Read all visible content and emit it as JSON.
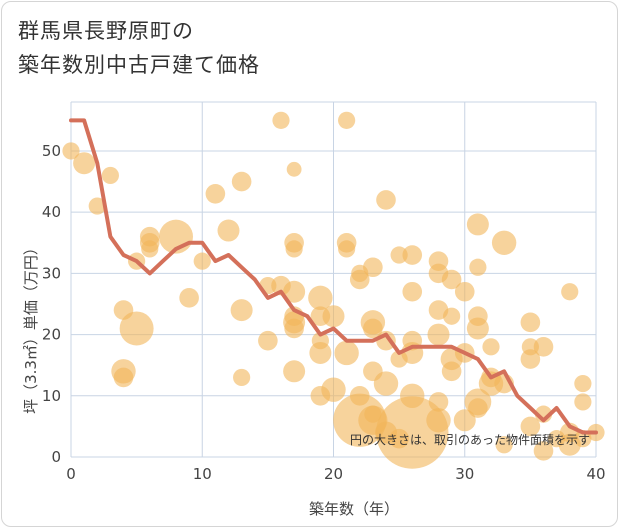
{
  "title": {
    "line1": "群馬県長野原町の",
    "line2": "築年数別中古戸建て価格"
  },
  "chart_data": {
    "type": "scatter",
    "title": "群馬県長野原町の築年数別中古戸建て価格",
    "xlabel": "築年数（年）",
    "ylabel": "坪（3.3㎡）単価（万円）",
    "xlim": [
      0,
      40
    ],
    "ylim": [
      0,
      58
    ],
    "x_ticks": [
      "0",
      "10",
      "20",
      "30",
      "40"
    ],
    "y_ticks": [
      "0",
      "10",
      "20",
      "30",
      "40",
      "50"
    ],
    "grid": true,
    "note": "円の大きさは、取引のあった物件面積を示す",
    "colors": {
      "bubble": "#f2b65a",
      "line": "#d4705a",
      "grid": "#c8d4e4"
    },
    "bubbles": [
      {
        "x": 0,
        "y": 50,
        "s": 1.5
      },
      {
        "x": 1,
        "y": 48,
        "s": 2.5
      },
      {
        "x": 2,
        "y": 41,
        "s": 1.5
      },
      {
        "x": 3,
        "y": 46,
        "s": 1.5
      },
      {
        "x": 4,
        "y": 24,
        "s": 2
      },
      {
        "x": 4,
        "y": 14,
        "s": 3
      },
      {
        "x": 4,
        "y": 13,
        "s": 2
      },
      {
        "x": 5,
        "y": 21,
        "s": 5
      },
      {
        "x": 5,
        "y": 32,
        "s": 1.5
      },
      {
        "x": 6,
        "y": 36,
        "s": 2
      },
      {
        "x": 6,
        "y": 35,
        "s": 2
      },
      {
        "x": 6,
        "y": 34,
        "s": 1.5
      },
      {
        "x": 8,
        "y": 36,
        "s": 5
      },
      {
        "x": 9,
        "y": 26,
        "s": 2
      },
      {
        "x": 10,
        "y": 32,
        "s": 1.5
      },
      {
        "x": 11,
        "y": 43,
        "s": 2
      },
      {
        "x": 12,
        "y": 37,
        "s": 2.5
      },
      {
        "x": 13,
        "y": 45,
        "s": 2
      },
      {
        "x": 13,
        "y": 24,
        "s": 2.5
      },
      {
        "x": 13,
        "y": 13,
        "s": 1.5
      },
      {
        "x": 15,
        "y": 19,
        "s": 2
      },
      {
        "x": 15,
        "y": 28,
        "s": 1.5
      },
      {
        "x": 16,
        "y": 55,
        "s": 1.5
      },
      {
        "x": 16,
        "y": 28,
        "s": 2
      },
      {
        "x": 17,
        "y": 47,
        "s": 1
      },
      {
        "x": 17,
        "y": 35,
        "s": 2
      },
      {
        "x": 17,
        "y": 34,
        "s": 1.5
      },
      {
        "x": 17,
        "y": 27,
        "s": 2.5
      },
      {
        "x": 17,
        "y": 23,
        "s": 2
      },
      {
        "x": 17,
        "y": 22,
        "s": 2.5
      },
      {
        "x": 17,
        "y": 21,
        "s": 2
      },
      {
        "x": 17,
        "y": 14,
        "s": 2.5
      },
      {
        "x": 19,
        "y": 26,
        "s": 3
      },
      {
        "x": 19,
        "y": 23,
        "s": 2
      },
      {
        "x": 19,
        "y": 19,
        "s": 1.5
      },
      {
        "x": 19,
        "y": 17,
        "s": 2.5
      },
      {
        "x": 19,
        "y": 10,
        "s": 2
      },
      {
        "x": 20,
        "y": 23,
        "s": 2.5
      },
      {
        "x": 20,
        "y": 11,
        "s": 3
      },
      {
        "x": 21,
        "y": 55,
        "s": 1.5
      },
      {
        "x": 21,
        "y": 35,
        "s": 2
      },
      {
        "x": 21,
        "y": 34,
        "s": 1.5
      },
      {
        "x": 21,
        "y": 17,
        "s": 3
      },
      {
        "x": 22,
        "y": 30,
        "s": 1.5
      },
      {
        "x": 22,
        "y": 29,
        "s": 2
      },
      {
        "x": 22,
        "y": 10,
        "s": 2
      },
      {
        "x": 22,
        "y": 6,
        "s": 9
      },
      {
        "x": 23,
        "y": 31,
        "s": 2
      },
      {
        "x": 23,
        "y": 22,
        "s": 3
      },
      {
        "x": 23,
        "y": 21,
        "s": 2
      },
      {
        "x": 23,
        "y": 14,
        "s": 2
      },
      {
        "x": 23,
        "y": 7,
        "s": 1.5
      },
      {
        "x": 23,
        "y": 6,
        "s": 4
      },
      {
        "x": 24,
        "y": 42,
        "s": 2
      },
      {
        "x": 24,
        "y": 19,
        "s": 2
      },
      {
        "x": 24,
        "y": 12,
        "s": 3
      },
      {
        "x": 24,
        "y": 4,
        "s": 2.5
      },
      {
        "x": 25,
        "y": 33,
        "s": 1.5
      },
      {
        "x": 25,
        "y": 16,
        "s": 1.5
      },
      {
        "x": 25,
        "y": 3,
        "s": 2
      },
      {
        "x": 26,
        "y": 33,
        "s": 2
      },
      {
        "x": 26,
        "y": 27,
        "s": 2
      },
      {
        "x": 26,
        "y": 19,
        "s": 2
      },
      {
        "x": 26,
        "y": 17,
        "s": 2.5
      },
      {
        "x": 26,
        "y": 10,
        "s": 3
      },
      {
        "x": 26,
        "y": 4,
        "s": 13
      },
      {
        "x": 28,
        "y": 32,
        "s": 2
      },
      {
        "x": 28,
        "y": 30,
        "s": 2
      },
      {
        "x": 28,
        "y": 24,
        "s": 2
      },
      {
        "x": 28,
        "y": 20,
        "s": 2.5
      },
      {
        "x": 28,
        "y": 9,
        "s": 2
      },
      {
        "x": 28,
        "y": 6,
        "s": 3
      },
      {
        "x": 29,
        "y": 29,
        "s": 2
      },
      {
        "x": 29,
        "y": 23,
        "s": 1.5
      },
      {
        "x": 29,
        "y": 16,
        "s": 2.5
      },
      {
        "x": 29,
        "y": 14,
        "s": 2
      },
      {
        "x": 30,
        "y": 27,
        "s": 2
      },
      {
        "x": 30,
        "y": 17,
        "s": 2
      },
      {
        "x": 30,
        "y": 6,
        "s": 2.5
      },
      {
        "x": 31,
        "y": 38,
        "s": 2.5
      },
      {
        "x": 31,
        "y": 31,
        "s": 1.5
      },
      {
        "x": 31,
        "y": 23,
        "s": 2
      },
      {
        "x": 31,
        "y": 21,
        "s": 2.5
      },
      {
        "x": 31,
        "y": 9,
        "s": 3.5
      },
      {
        "x": 31,
        "y": 8,
        "s": 2
      },
      {
        "x": 32,
        "y": 18,
        "s": 1.5
      },
      {
        "x": 32,
        "y": 13,
        "s": 2
      },
      {
        "x": 32,
        "y": 12,
        "s": 3
      },
      {
        "x": 33,
        "y": 35,
        "s": 3
      },
      {
        "x": 33,
        "y": 12,
        "s": 2
      },
      {
        "x": 33,
        "y": 2,
        "s": 1.5
      },
      {
        "x": 35,
        "y": 22,
        "s": 2
      },
      {
        "x": 35,
        "y": 18,
        "s": 1.5
      },
      {
        "x": 35,
        "y": 16,
        "s": 2
      },
      {
        "x": 35,
        "y": 5,
        "s": 2
      },
      {
        "x": 36,
        "y": 18,
        "s": 2
      },
      {
        "x": 36,
        "y": 7,
        "s": 1.5
      },
      {
        "x": 36,
        "y": 1,
        "s": 2
      },
      {
        "x": 37,
        "y": 3,
        "s": 1.5
      },
      {
        "x": 38,
        "y": 27,
        "s": 1.5
      },
      {
        "x": 38,
        "y": 4,
        "s": 2
      },
      {
        "x": 38,
        "y": 2,
        "s": 2.5
      },
      {
        "x": 39,
        "y": 12,
        "s": 1.5
      },
      {
        "x": 39,
        "y": 9,
        "s": 1.5
      },
      {
        "x": 39,
        "y": 3,
        "s": 1.5
      },
      {
        "x": 40,
        "y": 4,
        "s": 1.5
      }
    ],
    "line": {
      "x": [
        0,
        1,
        2,
        3,
        4,
        5,
        6,
        7,
        8,
        9,
        10,
        11,
        12,
        13,
        14,
        15,
        16,
        17,
        18,
        19,
        20,
        21,
        22,
        23,
        24,
        25,
        26,
        27,
        28,
        29,
        30,
        31,
        32,
        33,
        34,
        35,
        36,
        37,
        38,
        39,
        40
      ],
      "y": [
        55,
        55,
        48,
        36,
        33,
        32,
        30,
        32,
        34,
        35,
        35,
        32,
        33,
        31,
        29,
        26,
        27,
        24,
        23,
        20,
        21,
        19,
        19,
        19,
        20,
        17,
        18,
        18,
        18,
        18,
        17,
        16,
        13,
        14,
        10,
        8,
        6,
        8,
        5,
        4,
        4
      ]
    }
  }
}
